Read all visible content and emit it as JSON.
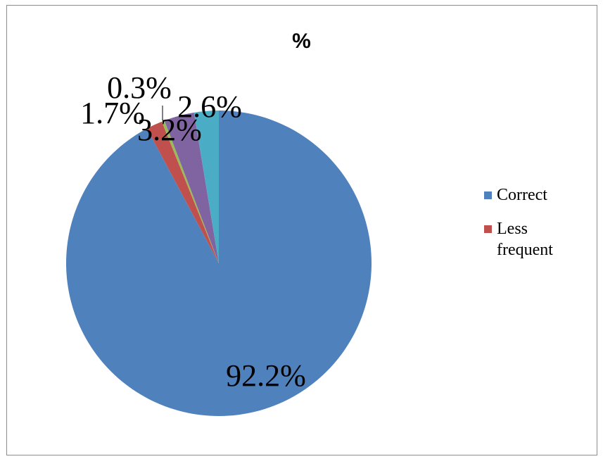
{
  "chart_data": {
    "type": "pie",
    "title": "%",
    "slices": [
      {
        "label": "Correct",
        "value": 92.2,
        "display": "92.2%",
        "color": "#4F81BD"
      },
      {
        "label": "Less frequent",
        "value": 1.7,
        "display": "1.7%",
        "color": "#C0504D"
      },
      {
        "label": "",
        "value": 0.3,
        "display": "0.3%",
        "color": "#9BBB59"
      },
      {
        "label": "",
        "value": 3.2,
        "display": "3.2%",
        "color": "#8064A2"
      },
      {
        "label": "",
        "value": 2.6,
        "display": "2.6%",
        "color": "#4BACC6"
      }
    ],
    "legend": {
      "position": "right",
      "entries": [
        {
          "label": "Correct",
          "color": "#4F81BD"
        },
        {
          "label": "Less frequent",
          "color": "#C0504D"
        }
      ]
    }
  }
}
